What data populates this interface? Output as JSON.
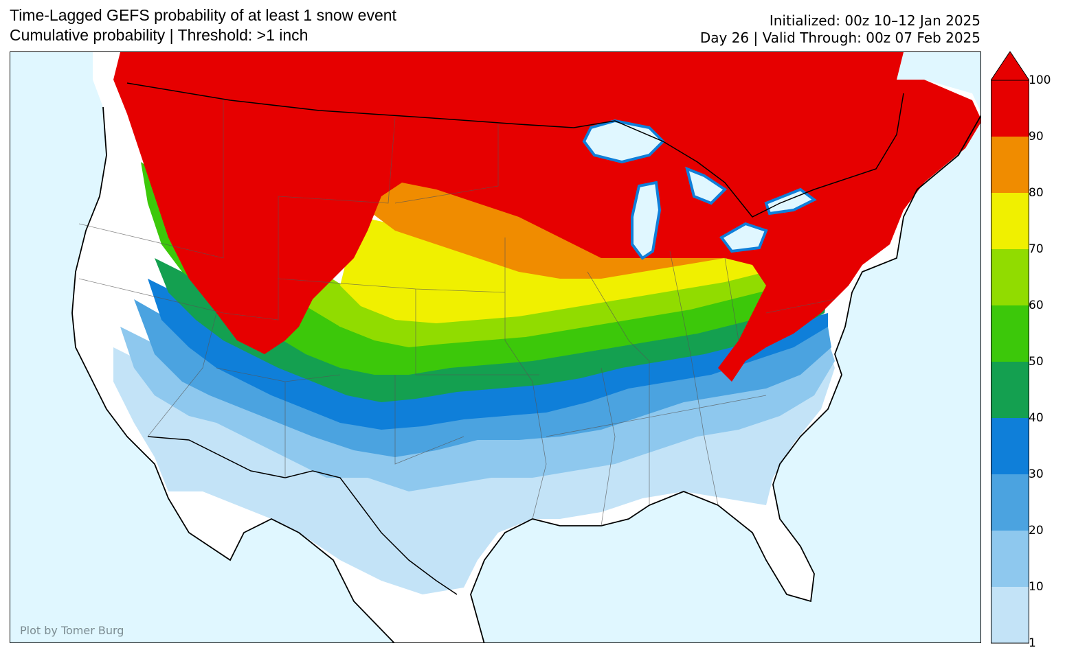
{
  "title": {
    "line1": "Time-Lagged GEFS probability of at least 1 snow event",
    "line2": "Cumulative probability | Threshold: >1 inch"
  },
  "meta": {
    "initialized": "Initialized: 00z 10–12 Jan 2025",
    "valid": "Day 26 | Valid Through: 00z 07 Feb 2025"
  },
  "credit": "Plot by Tomer Burg",
  "colors": {
    "ocean": "#e0f7ff",
    "land_zero": "#ffffff",
    "boundary": "#000000",
    "state_line": "#555555"
  },
  "colorbar": {
    "extend": "max",
    "ticks": [
      "1",
      "10",
      "20",
      "30",
      "40",
      "50",
      "60",
      "70",
      "80",
      "90",
      "100"
    ],
    "bins": [
      {
        "from": 1,
        "to": 10,
        "color": "#c3e3f7"
      },
      {
        "from": 10,
        "to": 20,
        "color": "#8ec8ee"
      },
      {
        "from": 20,
        "to": 30,
        "color": "#4ba3e0"
      },
      {
        "from": 30,
        "to": 40,
        "color": "#0f7fd9"
      },
      {
        "from": 40,
        "to": 50,
        "color": "#14a050"
      },
      {
        "from": 50,
        "to": 60,
        "color": "#3cc80a"
      },
      {
        "from": 60,
        "to": 70,
        "color": "#91dc00"
      },
      {
        "from": 70,
        "to": 80,
        "color": "#f0f000"
      },
      {
        "from": 80,
        "to": 90,
        "color": "#f08c00"
      },
      {
        "from": 90,
        "to": 100,
        "color": "#e60000"
      }
    ]
  }
}
